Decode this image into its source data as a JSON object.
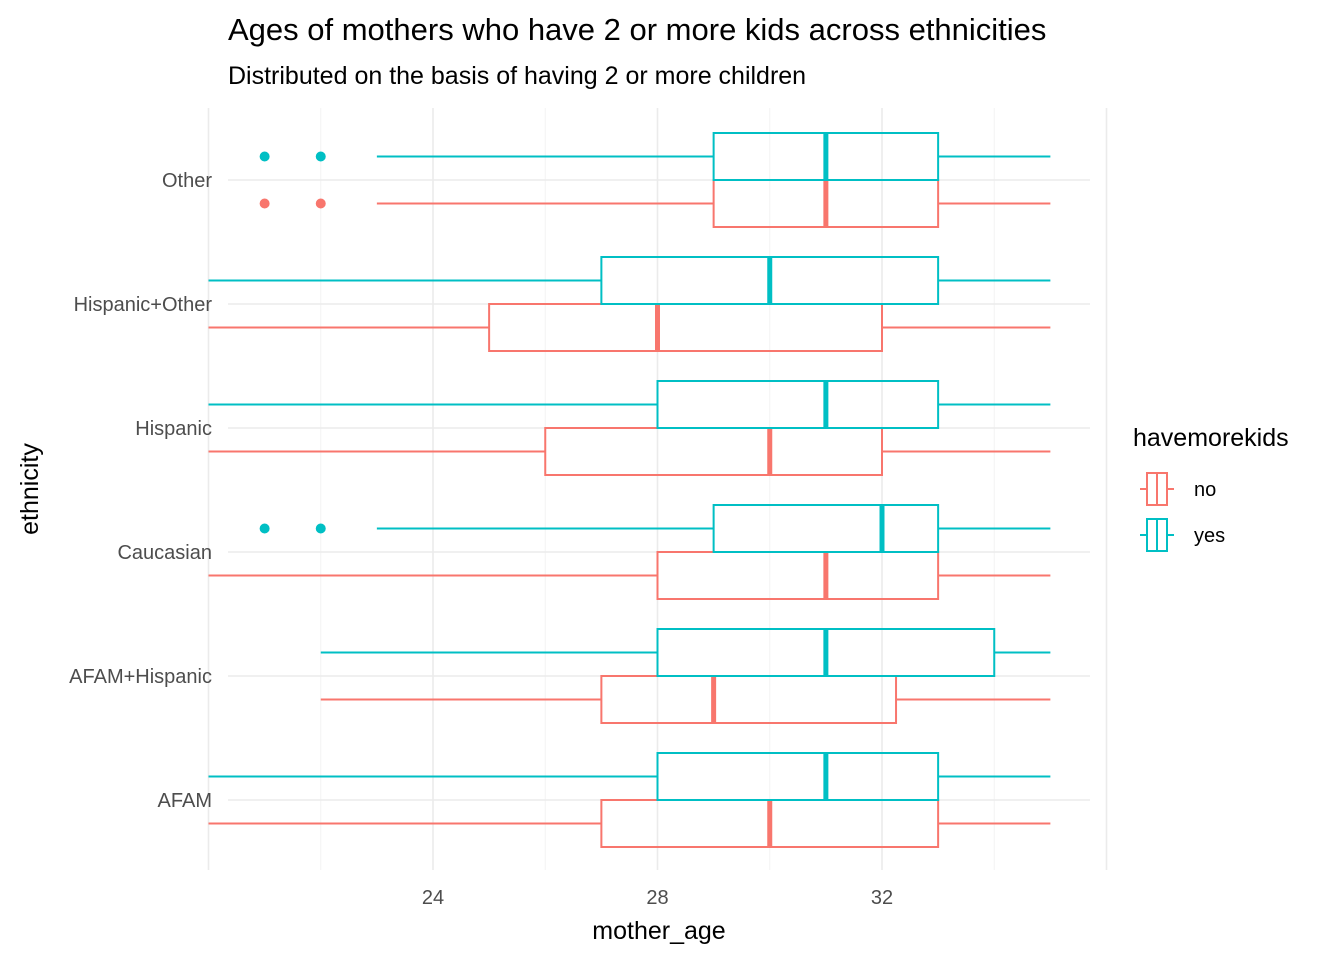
{
  "chart_data": {
    "type": "boxplot",
    "title": "Ages of mothers who have 2 or more kids across ethnicities",
    "subtitle": "Distributed on the basis of having 2 or more children",
    "xlabel": "mother_age",
    "ylabel": "ethnicity",
    "xlim": [
      19.6,
      36.5
    ],
    "x_ticks": [
      24,
      28,
      32
    ],
    "categories": [
      "AFAM",
      "AFAM+Hispanic",
      "Caucasian",
      "Hispanic",
      "Hispanic+Other",
      "Other"
    ],
    "grid": true,
    "legend": {
      "title": "havemorekids",
      "position": "right"
    },
    "series": [
      {
        "name": "no",
        "color": "#F8766D",
        "boxes": [
          {
            "category": "AFAM",
            "min": 20,
            "q1": 27,
            "median": 30,
            "q3": 33,
            "max": 35,
            "outliers": []
          },
          {
            "category": "AFAM+Hispanic",
            "min": 22,
            "q1": 27,
            "median": 29,
            "q3": 32.25,
            "max": 35,
            "outliers": []
          },
          {
            "category": "Caucasian",
            "min": 20,
            "q1": 28,
            "median": 31,
            "q3": 33,
            "max": 35,
            "outliers": []
          },
          {
            "category": "Hispanic",
            "min": 20,
            "q1": 26,
            "median": 30,
            "q3": 32,
            "max": 35,
            "outliers": []
          },
          {
            "category": "Hispanic+Other",
            "min": 20,
            "q1": 25,
            "median": 28,
            "q3": 32,
            "max": 35,
            "outliers": []
          },
          {
            "category": "Other",
            "min": 23,
            "q1": 29,
            "median": 31,
            "q3": 33,
            "max": 35,
            "outliers": [
              21,
              22
            ]
          }
        ]
      },
      {
        "name": "yes",
        "color": "#00BFC4",
        "boxes": [
          {
            "category": "AFAM",
            "min": 20,
            "q1": 28,
            "median": 31,
            "q3": 33,
            "max": 35,
            "outliers": []
          },
          {
            "category": "AFAM+Hispanic",
            "min": 22,
            "q1": 28,
            "median": 31,
            "q3": 34,
            "max": 35,
            "outliers": []
          },
          {
            "category": "Caucasian",
            "min": 23,
            "q1": 29,
            "median": 32,
            "q3": 33,
            "max": 35,
            "outliers": [
              21,
              22
            ]
          },
          {
            "category": "Hispanic",
            "min": 20,
            "q1": 28,
            "median": 31,
            "q3": 33,
            "max": 35,
            "outliers": []
          },
          {
            "category": "Hispanic+Other",
            "min": 20,
            "q1": 27,
            "median": 30,
            "q3": 33,
            "max": 35,
            "outliers": []
          },
          {
            "category": "Other",
            "min": 23,
            "q1": 29,
            "median": 31,
            "q3": 33,
            "max": 35,
            "outliers": [
              21,
              22
            ]
          }
        ]
      }
    ]
  }
}
